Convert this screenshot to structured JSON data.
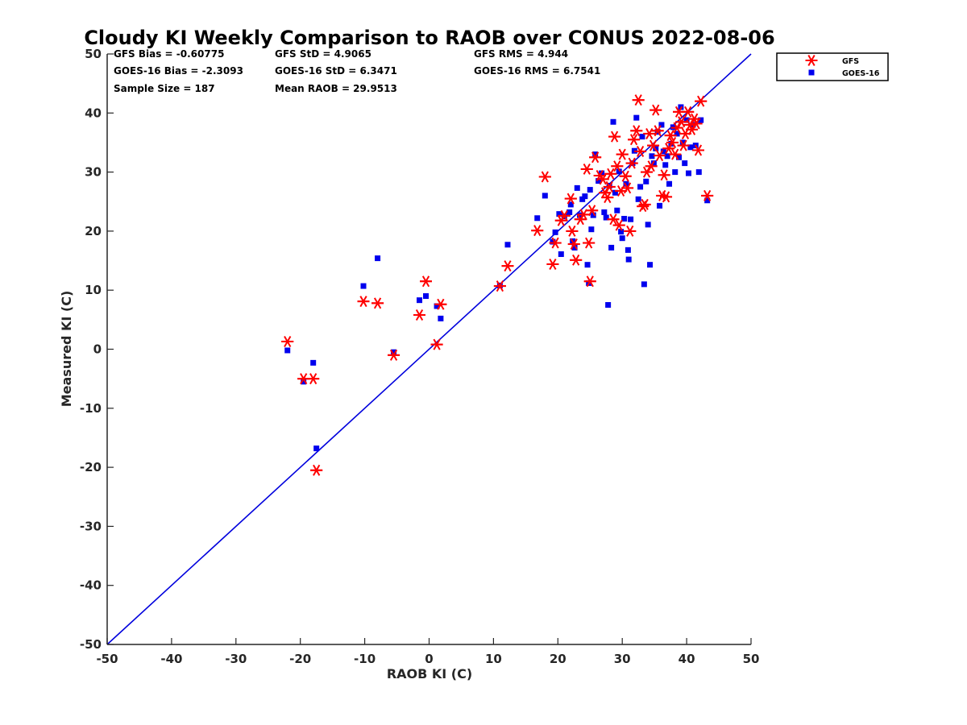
{
  "chart_data": {
    "type": "scatter",
    "title": "Cloudy KI Weekly Comparison to RAOB over CONUS 2022-08-06",
    "xlabel": "RAOB KI (C)",
    "ylabel": "Measured KI (C)",
    "xlim": [
      -50,
      50
    ],
    "ylim": [
      -50,
      50
    ],
    "xticks": [
      "-50",
      "-40",
      "-30",
      "-20",
      "-10",
      "0",
      "10",
      "20",
      "30",
      "40",
      "50"
    ],
    "yticks": [
      "-50",
      "-40",
      "-30",
      "-20",
      "-10",
      "0",
      "10",
      "20",
      "30",
      "40",
      "50"
    ],
    "grid": false,
    "legend_position": "outside-top-right",
    "reference_line": {
      "x": [
        -50,
        50
      ],
      "y": [
        -50,
        50
      ],
      "color": "#0000dd"
    },
    "stats": [
      "GFS Bias = -0.60775",
      "GFS StD = 4.9065",
      "GFS RMS = 4.944",
      "GOES-16 Bias = -2.3093",
      "GOES-16 StD = 6.3471",
      "GOES-16 RMS = 6.7541",
      "Sample Size = 187",
      "Mean RAOB = 29.9513"
    ],
    "series": [
      {
        "name": "GFS",
        "marker": "asterisk",
        "color": "#ff0000",
        "points": [
          [
            -22,
            1.3
          ],
          [
            -19.5,
            -5
          ],
          [
            -18,
            -5
          ],
          [
            -17.5,
            -20.5
          ],
          [
            -10.2,
            8.1
          ],
          [
            -8,
            7.8
          ],
          [
            -5.5,
            -1
          ],
          [
            -1.5,
            5.8
          ],
          [
            -0.5,
            11.5
          ],
          [
            1.2,
            0.8
          ],
          [
            1.8,
            7.6
          ],
          [
            11,
            10.7
          ],
          [
            12.2,
            14.1
          ],
          [
            16.8,
            20.1
          ],
          [
            18,
            29.2
          ],
          [
            19.2,
            14.4
          ],
          [
            19.6,
            18
          ],
          [
            20.5,
            21.8
          ],
          [
            21,
            22.6
          ],
          [
            22,
            25.5
          ],
          [
            22.2,
            20
          ],
          [
            22.5,
            17.8
          ],
          [
            22.8,
            15.1
          ],
          [
            23.5,
            22
          ],
          [
            24,
            22.8
          ],
          [
            24.5,
            30.5
          ],
          [
            24.8,
            18
          ],
          [
            25,
            11.5
          ],
          [
            25.3,
            23.5
          ],
          [
            25.8,
            32.5
          ],
          [
            26.5,
            29.4
          ],
          [
            27,
            28.8
          ],
          [
            27.3,
            26.5
          ],
          [
            27.7,
            25.7
          ],
          [
            28,
            27.5
          ],
          [
            28.2,
            29.7
          ],
          [
            28.6,
            22
          ],
          [
            28.8,
            36
          ],
          [
            29.2,
            31
          ],
          [
            29.5,
            21
          ],
          [
            29.8,
            26.8
          ],
          [
            30,
            33
          ],
          [
            30.5,
            29.3
          ],
          [
            30.8,
            27.3
          ],
          [
            31.2,
            20
          ],
          [
            31.5,
            31.5
          ],
          [
            31.8,
            35.5
          ],
          [
            32.2,
            37
          ],
          [
            32.5,
            42.2
          ],
          [
            32.8,
            33.5
          ],
          [
            33.2,
            24.2
          ],
          [
            33.5,
            24.5
          ],
          [
            33.8,
            30
          ],
          [
            34.2,
            36.5
          ],
          [
            34.5,
            31
          ],
          [
            34.8,
            34.5
          ],
          [
            35.2,
            40.5
          ],
          [
            35.5,
            37
          ],
          [
            35.8,
            32.8
          ],
          [
            36.2,
            26
          ],
          [
            36.5,
            29.5
          ],
          [
            36.8,
            25.8
          ],
          [
            37.2,
            34
          ],
          [
            37.5,
            36.2
          ],
          [
            37.8,
            35
          ],
          [
            38.2,
            33
          ],
          [
            38.5,
            37.5
          ],
          [
            38.8,
            40.2
          ],
          [
            39.2,
            38.5
          ],
          [
            39.5,
            34.5
          ],
          [
            39.8,
            36.5
          ],
          [
            40.2,
            40.2
          ],
          [
            40.5,
            38
          ],
          [
            40.8,
            37.2
          ],
          [
            41.2,
            39
          ],
          [
            41.5,
            38.2
          ],
          [
            41.8,
            33.7
          ],
          [
            42.2,
            42
          ],
          [
            43.2,
            26
          ]
        ]
      },
      {
        "name": "GOES-16",
        "marker": "square",
        "color": "#0000ee",
        "points": [
          [
            -22,
            -0.2
          ],
          [
            -19.5,
            -5.5
          ],
          [
            -18,
            -2.3
          ],
          [
            -17.5,
            -16.8
          ],
          [
            -10.2,
            10.7
          ],
          [
            -8,
            15.4
          ],
          [
            -5.5,
            -0.5
          ],
          [
            -1.5,
            8.3
          ],
          [
            -0.5,
            9
          ],
          [
            1.2,
            7.3
          ],
          [
            1.8,
            5.2
          ],
          [
            11,
            10.8
          ],
          [
            12.2,
            17.7
          ],
          [
            16.8,
            22.2
          ],
          [
            18,
            26
          ],
          [
            19.2,
            18.2
          ],
          [
            19.6,
            19.8
          ],
          [
            20.2,
            22.9
          ],
          [
            20.5,
            16.1
          ],
          [
            21,
            22.5
          ],
          [
            21.8,
            23.2
          ],
          [
            22,
            24.5
          ],
          [
            22.3,
            18.3
          ],
          [
            22.6,
            17.2
          ],
          [
            23,
            27.3
          ],
          [
            23.4,
            22.7
          ],
          [
            23.8,
            25.4
          ],
          [
            24.2,
            25.9
          ],
          [
            24.6,
            14.3
          ],
          [
            24.8,
            11.2
          ],
          [
            25,
            27
          ],
          [
            25.2,
            20.3
          ],
          [
            25.5,
            22.7
          ],
          [
            25.8,
            33
          ],
          [
            26.3,
            28.5
          ],
          [
            26.8,
            29.8
          ],
          [
            27.2,
            23.2
          ],
          [
            27.5,
            22.3
          ],
          [
            27.8,
            7.5
          ],
          [
            28,
            27.7
          ],
          [
            28.3,
            17.2
          ],
          [
            28.6,
            38.5
          ],
          [
            28.9,
            26.5
          ],
          [
            29.2,
            23.5
          ],
          [
            29.5,
            30.1
          ],
          [
            29.8,
            19.9
          ],
          [
            30,
            18.8
          ],
          [
            30.3,
            22.1
          ],
          [
            30.6,
            28
          ],
          [
            30.9,
            16.8
          ],
          [
            31,
            15.2
          ],
          [
            31.3,
            22
          ],
          [
            31.6,
            31.5
          ],
          [
            31.9,
            33.6
          ],
          [
            32.2,
            39.2
          ],
          [
            32.5,
            25.4
          ],
          [
            32.8,
            27.5
          ],
          [
            33.1,
            36
          ],
          [
            33.4,
            11
          ],
          [
            33.7,
            28.4
          ],
          [
            34,
            21.1
          ],
          [
            34.3,
            14.3
          ],
          [
            34.6,
            32.7
          ],
          [
            34.9,
            31.5
          ],
          [
            35.2,
            34
          ],
          [
            35.5,
            36.8
          ],
          [
            35.8,
            24.3
          ],
          [
            36.1,
            38
          ],
          [
            36.4,
            33.5
          ],
          [
            36.7,
            31.2
          ],
          [
            37,
            32.7
          ],
          [
            37.3,
            28
          ],
          [
            37.6,
            34.8
          ],
          [
            37.9,
            37.6
          ],
          [
            38.2,
            30
          ],
          [
            38.5,
            36.5
          ],
          [
            38.8,
            32.5
          ],
          [
            39.1,
            41
          ],
          [
            39.4,
            35
          ],
          [
            39.7,
            31.5
          ],
          [
            40,
            38.8
          ],
          [
            40.3,
            29.8
          ],
          [
            40.6,
            34.2
          ],
          [
            41,
            38
          ],
          [
            41.4,
            34.5
          ],
          [
            41.9,
            30
          ],
          [
            42.2,
            38.8
          ],
          [
            43.2,
            25.2
          ]
        ]
      }
    ]
  }
}
